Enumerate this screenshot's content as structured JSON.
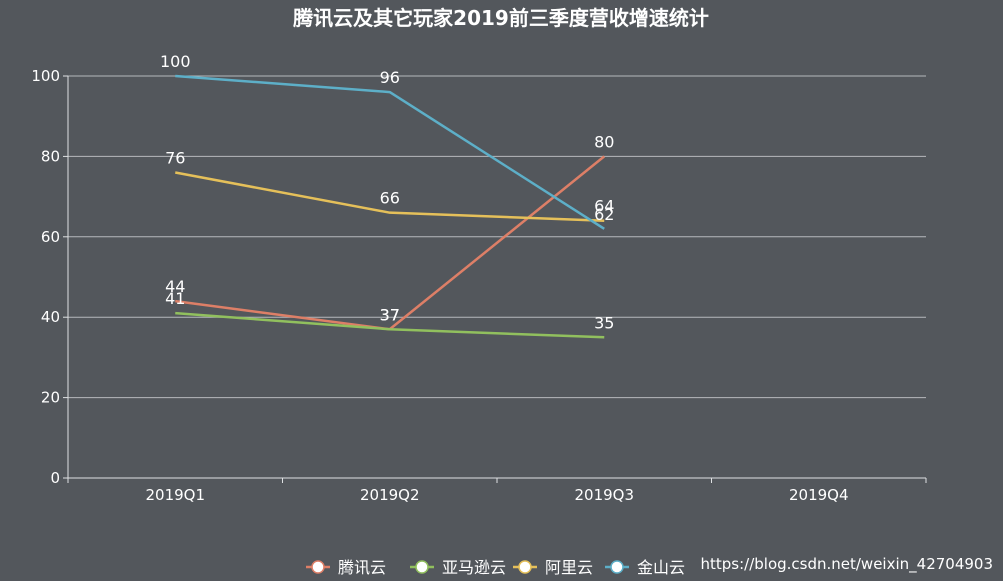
{
  "chart_data": {
    "type": "line",
    "title": "腾讯云及其它玩家2019前三季度营收增速统计",
    "categories": [
      "2019Q1",
      "2019Q2",
      "2019Q3",
      "2019Q4"
    ],
    "ylim": [
      0,
      100
    ],
    "yticks": [
      0,
      20,
      40,
      60,
      80,
      100
    ],
    "grid": true,
    "legend": "bottom",
    "series": [
      {
        "name": "腾讯云",
        "values": [
          44,
          37,
          80,
          null
        ],
        "color": "#dd7f67"
      },
      {
        "name": "亚马逊云",
        "values": [
          41,
          37,
          35,
          null
        ],
        "color": "#91c05e"
      },
      {
        "name": "阿里云",
        "values": [
          76,
          66,
          64,
          null
        ],
        "color": "#e5c05a"
      },
      {
        "name": "金山云",
        "values": [
          100,
          96,
          62,
          null
        ],
        "color": "#5dafc8"
      }
    ]
  },
  "watermark": "https://blog.csdn.net/weixin_42704903"
}
